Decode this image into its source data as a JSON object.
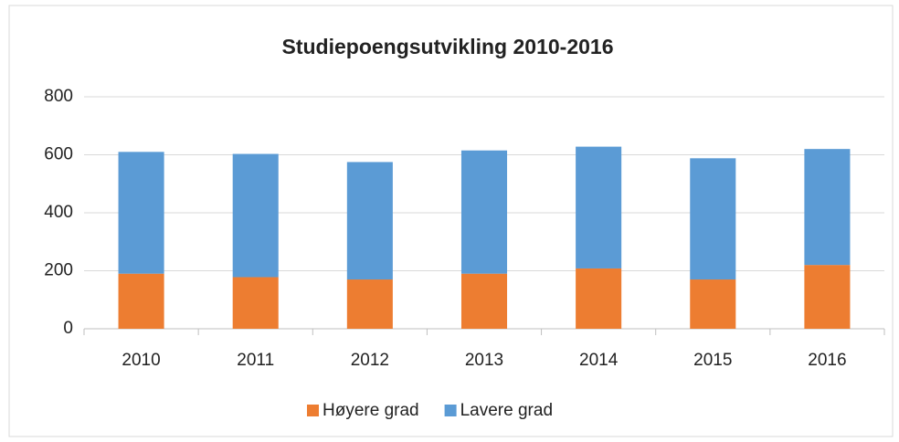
{
  "chart_data": {
    "type": "bar",
    "stacked": true,
    "title": "Studiepoengsutvikling 2010-2016",
    "categories": [
      "2010",
      "2011",
      "2012",
      "2013",
      "2014",
      "2015",
      "2016"
    ],
    "series": [
      {
        "name": "Høyere grad",
        "color": "#ed7d31",
        "values": [
          190,
          178,
          170,
          190,
          208,
          170,
          220
        ]
      },
      {
        "name": "Lavere grad",
        "color": "#5b9bd5",
        "values": [
          420,
          425,
          405,
          425,
          420,
          418,
          400
        ]
      }
    ],
    "ylim": [
      0,
      800
    ],
    "yticks": [
      0,
      200,
      400,
      600,
      800
    ],
    "grid": true,
    "legend": "bottom"
  }
}
